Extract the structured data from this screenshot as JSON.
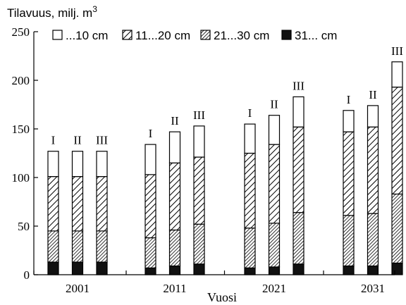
{
  "chart_data": {
    "type": "bar",
    "stacked": true,
    "ylabel": "Tilavuus, milj. m",
    "ylabel_superscript": "3",
    "xlabel": "Vuosi",
    "ylim": [
      0,
      250
    ],
    "yticks": [
      "0",
      "50",
      "100",
      "150",
      "200",
      "250"
    ],
    "legend": [
      {
        "name": "...10 cm",
        "pattern": "white"
      },
      {
        "name": "11...20 cm",
        "pattern": "sparse-hatch"
      },
      {
        "name": "21...30 cm",
        "pattern": "dense-hatch"
      },
      {
        "name": "31... cm",
        "pattern": "black"
      }
    ],
    "legend_position": "top",
    "groups": [
      {
        "year": "2001",
        "bars": [
          {
            "scenario": "I",
            "values": [
              26,
              56,
              32,
              13
            ]
          },
          {
            "scenario": "II",
            "values": [
              26,
              56,
              32,
              13
            ]
          },
          {
            "scenario": "III",
            "values": [
              26,
              56,
              32,
              13
            ]
          }
        ]
      },
      {
        "year": "2011",
        "bars": [
          {
            "scenario": "I",
            "values": [
              31,
              65,
              31,
              7
            ]
          },
          {
            "scenario": "II",
            "values": [
              32,
              69,
              37,
              9
            ]
          },
          {
            "scenario": "III",
            "values": [
              32,
              69,
              41,
              11
            ]
          }
        ]
      },
      {
        "year": "2021",
        "bars": [
          {
            "scenario": "I",
            "values": [
              30,
              77,
              41,
              7
            ]
          },
          {
            "scenario": "II",
            "values": [
              30,
              81,
              45,
              8
            ]
          },
          {
            "scenario": "III",
            "values": [
              31,
              88,
              53,
              11
            ]
          }
        ]
      },
      {
        "year": "2031",
        "bars": [
          {
            "scenario": "I",
            "values": [
              22,
              86,
              52,
              9
            ]
          },
          {
            "scenario": "II",
            "values": [
              22,
              89,
              54,
              9
            ]
          },
          {
            "scenario": "III",
            "values": [
              26,
              110,
              71,
              12
            ]
          }
        ]
      }
    ],
    "colors": {
      "black": "#111111",
      "white": "#ffffff",
      "axis": "#000000"
    }
  }
}
